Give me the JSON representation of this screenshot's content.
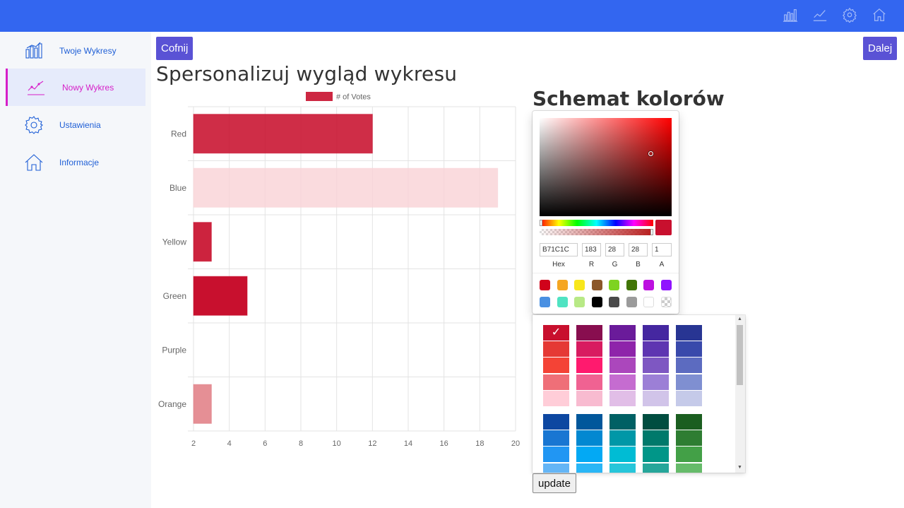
{
  "topbar": {
    "icons": [
      "chart-bar-icon",
      "chart-line-icon",
      "gear-icon",
      "home-icon"
    ]
  },
  "sidebar": {
    "items": [
      {
        "label": "Twoje Wykresy",
        "icon": "chart-bar-icon"
      },
      {
        "label": "Nowy Wykres",
        "icon": "chart-line-icon",
        "active": true
      },
      {
        "label": "Ustawienia",
        "icon": "gear-icon"
      },
      {
        "label": "Informacje",
        "icon": "home-icon"
      }
    ]
  },
  "toolbar": {
    "back_label": "Cofnij",
    "next_label": "Dalej"
  },
  "page": {
    "title": "Spersonalizuj wygląd wykresu",
    "scheme_title": "Schemat kolorów",
    "update_label": "update"
  },
  "chart_data": {
    "type": "bar",
    "orientation": "horizontal",
    "categories": [
      "Red",
      "Blue",
      "Yellow",
      "Green",
      "Purple",
      "Orange"
    ],
    "series": [
      {
        "name": "# of Votes",
        "values": [
          12,
          19,
          3,
          5,
          2,
          3
        ],
        "colors": [
          "#c8102e",
          "#f9d2d6",
          "#c8102e",
          "#c8102e",
          "#c8102e",
          "#e07b83"
        ],
        "opacity": [
          0.88,
          0.8,
          0.92,
          1.0,
          1.0,
          0.85
        ]
      }
    ],
    "xlim": [
      2,
      20
    ],
    "xticks": [
      "2",
      "4",
      "6",
      "8",
      "10",
      "12",
      "14",
      "16",
      "18",
      "20"
    ],
    "legend_color": "#c8102e",
    "grid": true
  },
  "picker": {
    "hex": "B71C1C",
    "r": "183",
    "g": "28",
    "b": "28",
    "a": "1",
    "labels": {
      "hex": "Hex",
      "r": "R",
      "g": "G",
      "b": "B",
      "a": "A"
    },
    "preset_colors": [
      "#d0021b",
      "#f5a623",
      "#f8e71c",
      "#8b572a",
      "#7ed321",
      "#417505",
      "#bd10e0",
      "#9013fe",
      "#4a90e2",
      "#50e3c2",
      "#b8e986",
      "#000000",
      "#4a4a4a",
      "#9b9b9b",
      "#ffffff",
      "transparent"
    ]
  },
  "palette": {
    "groups": [
      [
        [
          "#c8102e",
          "#880e4f",
          "#6a1b9a",
          "#4527a0",
          "#283593"
        ],
        [
          "#e53935",
          "#d81b60",
          "#8e24aa",
          "#5e35b1",
          "#3949ab"
        ],
        [
          "#f44336",
          "#ff1a6e",
          "#ab47bc",
          "#7e57c2",
          "#5c6bc0"
        ],
        [
          "#ef6f78",
          "#f06292",
          "#c56cd0",
          "#9c7fd6",
          "#7f8fd1"
        ],
        [
          "#ffcdd8",
          "#f8bbd0",
          "#e1bee7",
          "#d1c4e9",
          "#c5cae9"
        ]
      ],
      [
        [
          "#0d47a1",
          "#01579b",
          "#006064",
          "#004d40",
          "#1b5e20"
        ],
        [
          "#1976d2",
          "#0288d1",
          "#0097a7",
          "#00796b",
          "#2e7d32"
        ],
        [
          "#2196f3",
          "#03a9f4",
          "#00bcd4",
          "#009688",
          "#43a047"
        ],
        [
          "#64b5f6",
          "#29b6f6",
          "#26c6da",
          "#26a69a",
          "#66bb6a"
        ]
      ]
    ]
  }
}
